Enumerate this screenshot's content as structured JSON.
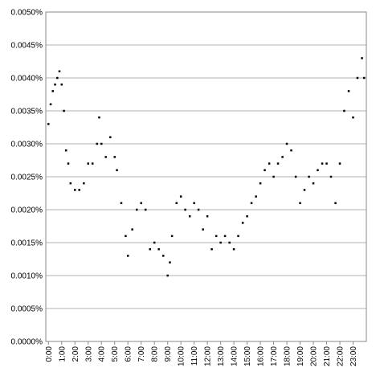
{
  "chart_data": {
    "type": "scatter",
    "color": "#000000",
    "grid": true,
    "x": [
      0,
      0.17,
      0.33,
      0.5,
      0.67,
      0.83,
      1,
      1.17,
      1.33,
      1.5,
      1.67,
      2,
      2.33,
      2.67,
      3,
      3.33,
      3.67,
      3.83,
      4,
      4.33,
      4.67,
      5,
      5.17,
      5.5,
      5.83,
      6,
      6.33,
      6.67,
      7,
      7.33,
      7.67,
      8,
      8.33,
      8.67,
      9,
      9.17,
      9.33,
      9.67,
      10,
      10.33,
      10.67,
      11,
      11.33,
      11.67,
      12,
      12.33,
      12.67,
      13,
      13.33,
      13.67,
      14,
      14.33,
      14.67,
      15,
      15.33,
      15.67,
      16,
      16.33,
      16.67,
      17,
      17.33,
      17.67,
      18,
      18.33,
      18.67,
      19,
      19.33,
      19.67,
      20,
      20.33,
      20.67,
      21,
      21.33,
      21.67,
      22,
      22.33,
      22.67,
      23,
      23.33,
      23.67,
      23.83
    ],
    "values": [
      0.0033,
      0.0036,
      0.0038,
      0.0039,
      0.004,
      0.0041,
      0.0039,
      0.0035,
      0.0029,
      0.0027,
      0.0024,
      0.0023,
      0.0023,
      0.0024,
      0.0027,
      0.0027,
      0.003,
      0.0034,
      0.003,
      0.0028,
      0.0031,
      0.0028,
      0.0026,
      0.0021,
      0.0016,
      0.0013,
      0.0017,
      0.002,
      0.0021,
      0.002,
      0.0014,
      0.0015,
      0.0014,
      0.0013,
      0.001,
      0.0012,
      0.0016,
      0.0021,
      0.0022,
      0.002,
      0.0019,
      0.0021,
      0.002,
      0.0017,
      0.0019,
      0.0014,
      0.0016,
      0.0015,
      0.0016,
      0.0015,
      0.0014,
      0.0016,
      0.0018,
      0.0019,
      0.0021,
      0.0022,
      0.0024,
      0.0026,
      0.0027,
      0.0025,
      0.0027,
      0.0028,
      0.003,
      0.0029,
      0.0025,
      0.0021,
      0.0023,
      0.0025,
      0.0024,
      0.0026,
      0.0027,
      0.0027,
      0.0025,
      0.0021,
      0.0027,
      0.0035,
      0.0038,
      0.0034,
      0.004,
      0.0043,
      0.004
    ],
    "xlim": [
      -0.2,
      24
    ],
    "xticks": [
      {
        "value": 0,
        "label": "0:00"
      },
      {
        "value": 1,
        "label": "1:00"
      },
      {
        "value": 2,
        "label": "2:00"
      },
      {
        "value": 3,
        "label": "3:00"
      },
      {
        "value": 4,
        "label": "4:00"
      },
      {
        "value": 5,
        "label": "5:00"
      },
      {
        "value": 6,
        "label": "6:00"
      },
      {
        "value": 7,
        "label": "7:00"
      },
      {
        "value": 8,
        "label": "8:00"
      },
      {
        "value": 9,
        "label": "9:00"
      },
      {
        "value": 10,
        "label": "10:00"
      },
      {
        "value": 11,
        "label": "11:00"
      },
      {
        "value": 12,
        "label": "12:00"
      },
      {
        "value": 13,
        "label": "13:00"
      },
      {
        "value": 14,
        "label": "14:00"
      },
      {
        "value": 15,
        "label": "15:00"
      },
      {
        "value": 16,
        "label": "16:00"
      },
      {
        "value": 17,
        "label": "17:00"
      },
      {
        "value": 18,
        "label": "18:00"
      },
      {
        "value": 19,
        "label": "19:00"
      },
      {
        "value": 20,
        "label": "20:00"
      },
      {
        "value": 21,
        "label": "21:00"
      },
      {
        "value": 22,
        "label": "22:00"
      },
      {
        "value": 23,
        "label": "23:00"
      }
    ],
    "ylim": [
      0,
      0.005
    ],
    "yticks": [
      {
        "value": 0,
        "label": "0.0000%"
      },
      {
        "value": 0.0005,
        "label": "0.0005%"
      },
      {
        "value": 0.001,
        "label": "0.0010%"
      },
      {
        "value": 0.0015,
        "label": "0.0015%"
      },
      {
        "value": 0.002,
        "label": "0.0020%"
      },
      {
        "value": 0.0025,
        "label": "0.0025%"
      },
      {
        "value": 0.003,
        "label": "0.0030%"
      },
      {
        "value": 0.0035,
        "label": "0.0035%"
      },
      {
        "value": 0.004,
        "label": "0.0040%"
      },
      {
        "value": 0.0045,
        "label": "0.0045%"
      },
      {
        "value": 0.005,
        "label": "0.0050%"
      }
    ]
  }
}
